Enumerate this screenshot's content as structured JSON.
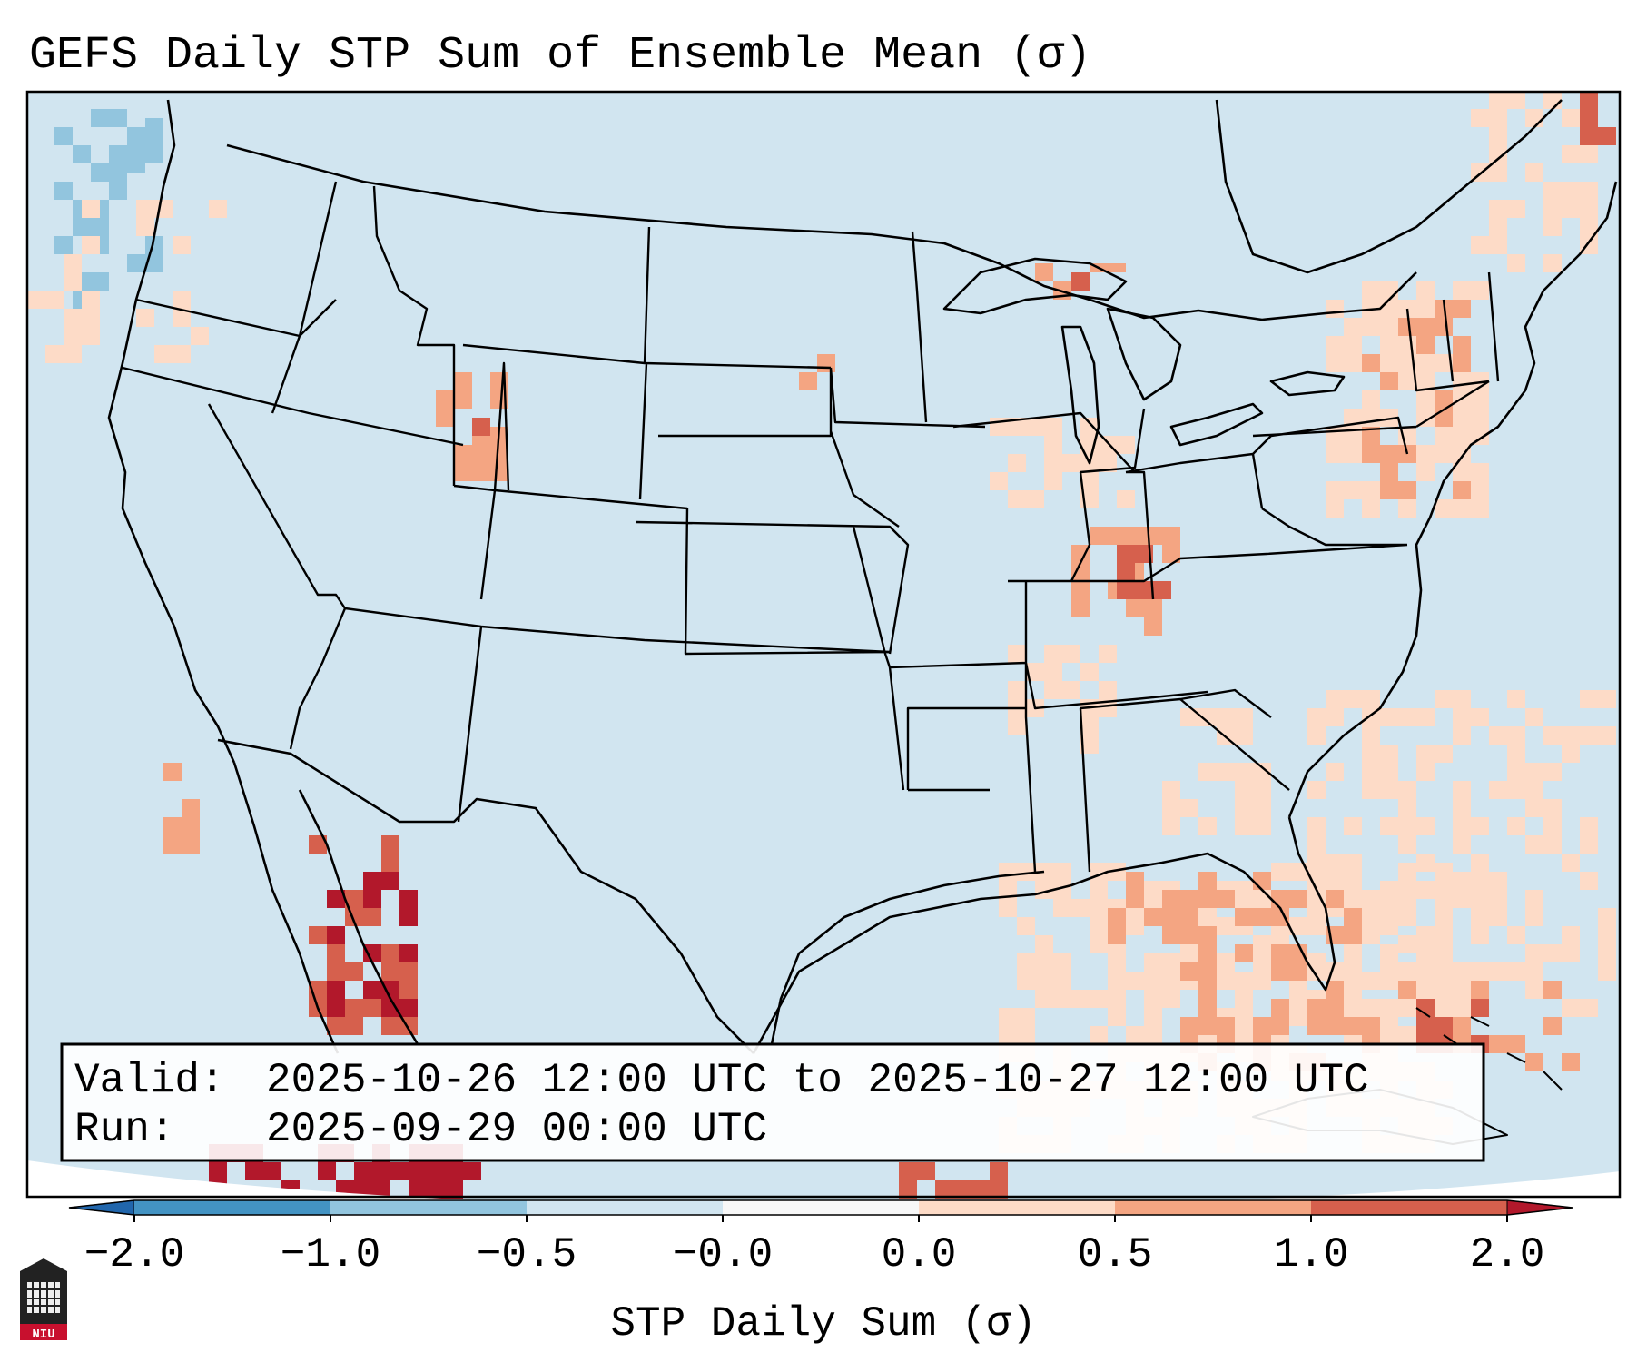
{
  "title": "GEFS Daily STP Sum of Ensemble Mean (σ)",
  "info": {
    "valid_label": "Valid:",
    "valid_value": "2025-10-26 12:00 UTC to 2025-10-27 12:00 UTC",
    "run_label": "Run:",
    "run_value": "2025-09-29 00:00 UTC"
  },
  "colorbar": {
    "label": "STP Daily Sum (σ)",
    "ticks": [
      "−2.0",
      "−1.0",
      "−0.5",
      "−0.0",
      "0.0",
      "0.5",
      "1.0",
      "2.0"
    ],
    "colors": [
      "#2166ac",
      "#4393c3",
      "#92c5de",
      "#d1e5f0",
      "#f7f7f7",
      "#fddbc7",
      "#f4a582",
      "#d6604d",
      "#b2182b"
    ],
    "extend": "both"
  },
  "map": {
    "background_color": "#d1e5f0",
    "region": "Continental United States with southern Canada, northern Mexico and the Gulf of Mexico",
    "boundaries": "state and national borders, coastlines",
    "projection": "Lambert conformal"
  },
  "logo": {
    "icon": "niu-university-seal-icon",
    "text": "NIU"
  }
}
